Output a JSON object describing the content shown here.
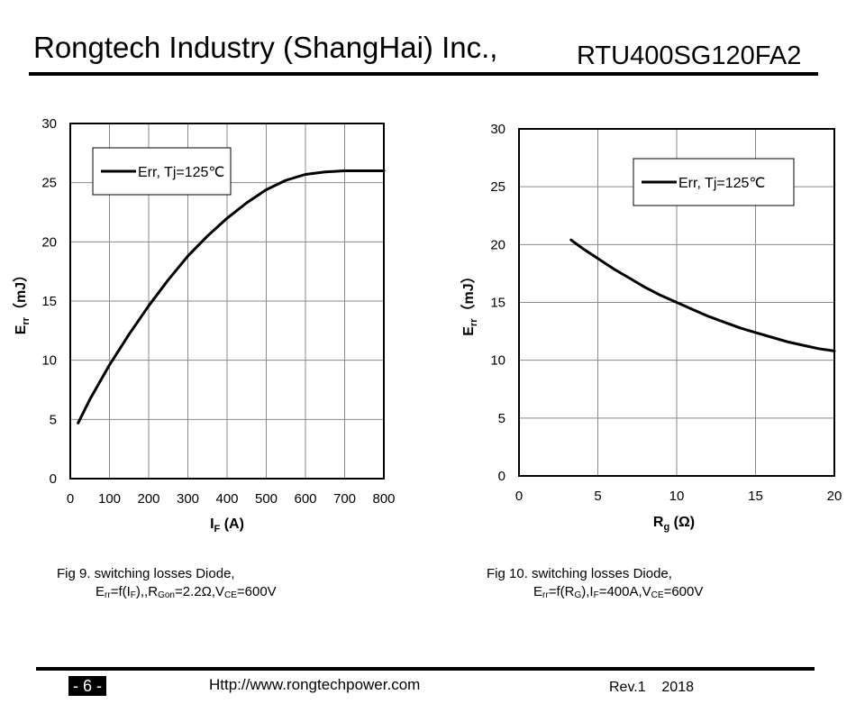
{
  "header": {
    "company": "Rongtech Industry (ShangHai) Inc.,",
    "part_number": "RTU400SG120FA2"
  },
  "chart_data": [
    {
      "type": "line",
      "figure": "Fig 9",
      "title": "",
      "xlabel": {
        "main": "I",
        "sub": "F",
        "unit": " (A)"
      },
      "ylabel": {
        "main": "E",
        "sub": "rr",
        "unit": "（mJ）"
      },
      "xlim": [
        0,
        800
      ],
      "ylim": [
        0,
        30
      ],
      "xticks": [
        "0",
        "100",
        "200",
        "300",
        "400",
        "500",
        "600",
        "700",
        "800"
      ],
      "yticks": [
        "0",
        "5",
        "10",
        "15",
        "20",
        "25",
        "30"
      ],
      "grid": true,
      "legend_position": "top-left",
      "series": [
        {
          "name": "Err, Tj=125℃",
          "x": [
            20,
            50,
            100,
            150,
            200,
            250,
            300,
            350,
            400,
            450,
            500,
            550,
            600,
            650,
            700,
            750,
            800
          ],
          "y": [
            4.7,
            6.7,
            9.6,
            12.2,
            14.6,
            16.8,
            18.8,
            20.5,
            22.0,
            23.3,
            24.4,
            25.2,
            25.7,
            25.9,
            26.0,
            26.0,
            26.0
          ]
        }
      ]
    },
    {
      "type": "line",
      "figure": "Fig 10",
      "title": "",
      "xlabel": {
        "main": "R",
        "sub": "g",
        "unit": " (Ω)"
      },
      "ylabel": {
        "main": "E",
        "sub": "rr",
        "unit": "（mJ）"
      },
      "xlim": [
        0,
        20
      ],
      "ylim": [
        0,
        30
      ],
      "xticks": [
        "0",
        "5",
        "10",
        "15",
        "20"
      ],
      "yticks": [
        "0",
        "5",
        "10",
        "15",
        "20",
        "25",
        "30"
      ],
      "grid": true,
      "legend_position": "top-right",
      "series": [
        {
          "name": "Err, Tj=125℃",
          "x": [
            3.3,
            4,
            5,
            6,
            7,
            8,
            9,
            10,
            11,
            12,
            13,
            14,
            15,
            16,
            17,
            18,
            19,
            20
          ],
          "y": [
            20.4,
            19.7,
            18.8,
            17.9,
            17.1,
            16.3,
            15.6,
            15.0,
            14.4,
            13.8,
            13.3,
            12.8,
            12.4,
            12.0,
            11.6,
            11.3,
            11.0,
            10.8
          ]
        }
      ]
    }
  ],
  "captions": {
    "fig9": {
      "line1": "Fig 9. switching losses Diode,",
      "err": "E",
      "err_sub": "rr",
      "f_open": "=f(I",
      "f_sub": "F",
      "mid": "),,R",
      "r_sub": "Gon",
      "r_val": "=2.2Ω,V",
      "v_sub": "CE",
      "v_val": "=600V"
    },
    "fig10": {
      "line1": "Fig 10. switching losses Diode,",
      "err": "E",
      "err_sub": "rr",
      "f_open": "=f(R",
      "f_sub": "G",
      "mid": "),I",
      "i_sub": "F",
      "i_val": "=400A,V",
      "v_sub": "CE",
      "v_val": "=600V"
    }
  },
  "footer": {
    "page": "- 6 -",
    "url": "Http://www.rongtechpower.com",
    "rev": "Rev.1",
    "year": "2018"
  }
}
